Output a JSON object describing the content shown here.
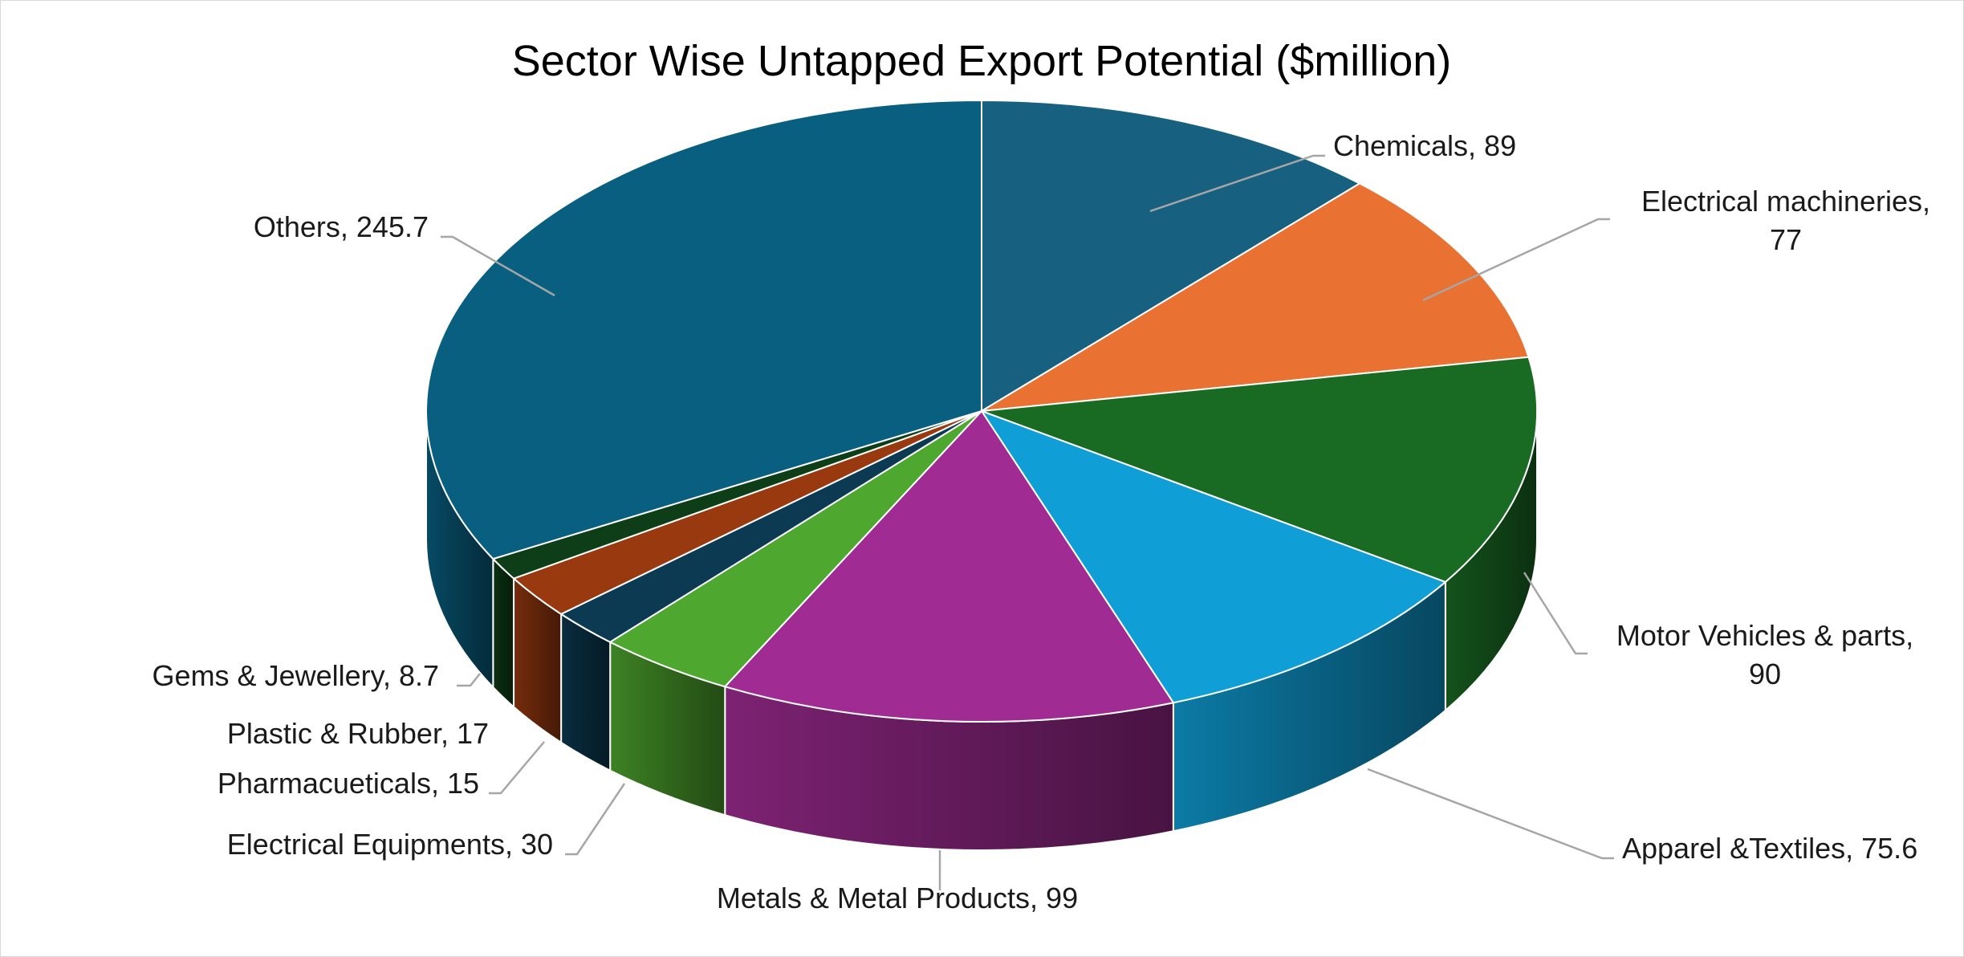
{
  "chart_data": {
    "type": "pie",
    "style": "3d",
    "title": "Sector Wise Untapped Export Potential ($million)",
    "legend": "none",
    "data_labels": "category, value with leader lines",
    "series": [
      {
        "slices": [
          {
            "label": "Chemicals",
            "value": 89,
            "display": "Chemicals, 89",
            "color": "#17607f"
          },
          {
            "label": "Electrical machineries",
            "value": 77,
            "display": "Electrical machineries, 77",
            "color": "#e97132"
          },
          {
            "label": "Motor Vehicles & parts",
            "value": 90,
            "display": "Motor Vehicles & parts, 90",
            "color": "#196b24"
          },
          {
            "label": "Apparel &Textiles",
            "value": 75.6,
            "display": "Apparel &Textiles, 75.6",
            "color": "#0f9ed5"
          },
          {
            "label": "Metals & Metal Products",
            "value": 99,
            "display": "Metals & Metal Products, 99",
            "color": "#a02b93"
          },
          {
            "label": "Electrical Equipments",
            "value": 30,
            "display": "Electrical Equipments, 30",
            "color": "#4ea72e"
          },
          {
            "label": "Pharmacueticals",
            "value": 15,
            "display": "Pharmacueticals, 15",
            "color": "#0b3a52"
          },
          {
            "label": "Plastic & Rubber",
            "value": 17,
            "display": "Plastic & Rubber, 17",
            "color": "#99390f"
          },
          {
            "label": "Gems & Jewellery",
            "value": 8.7,
            "display": "Gems & Jewellery, 8.7",
            "color": "#0e3e17"
          },
          {
            "label": "Others",
            "value": 245.7,
            "display": "Others, 245.7",
            "color": "#095f80"
          }
        ]
      }
    ]
  }
}
